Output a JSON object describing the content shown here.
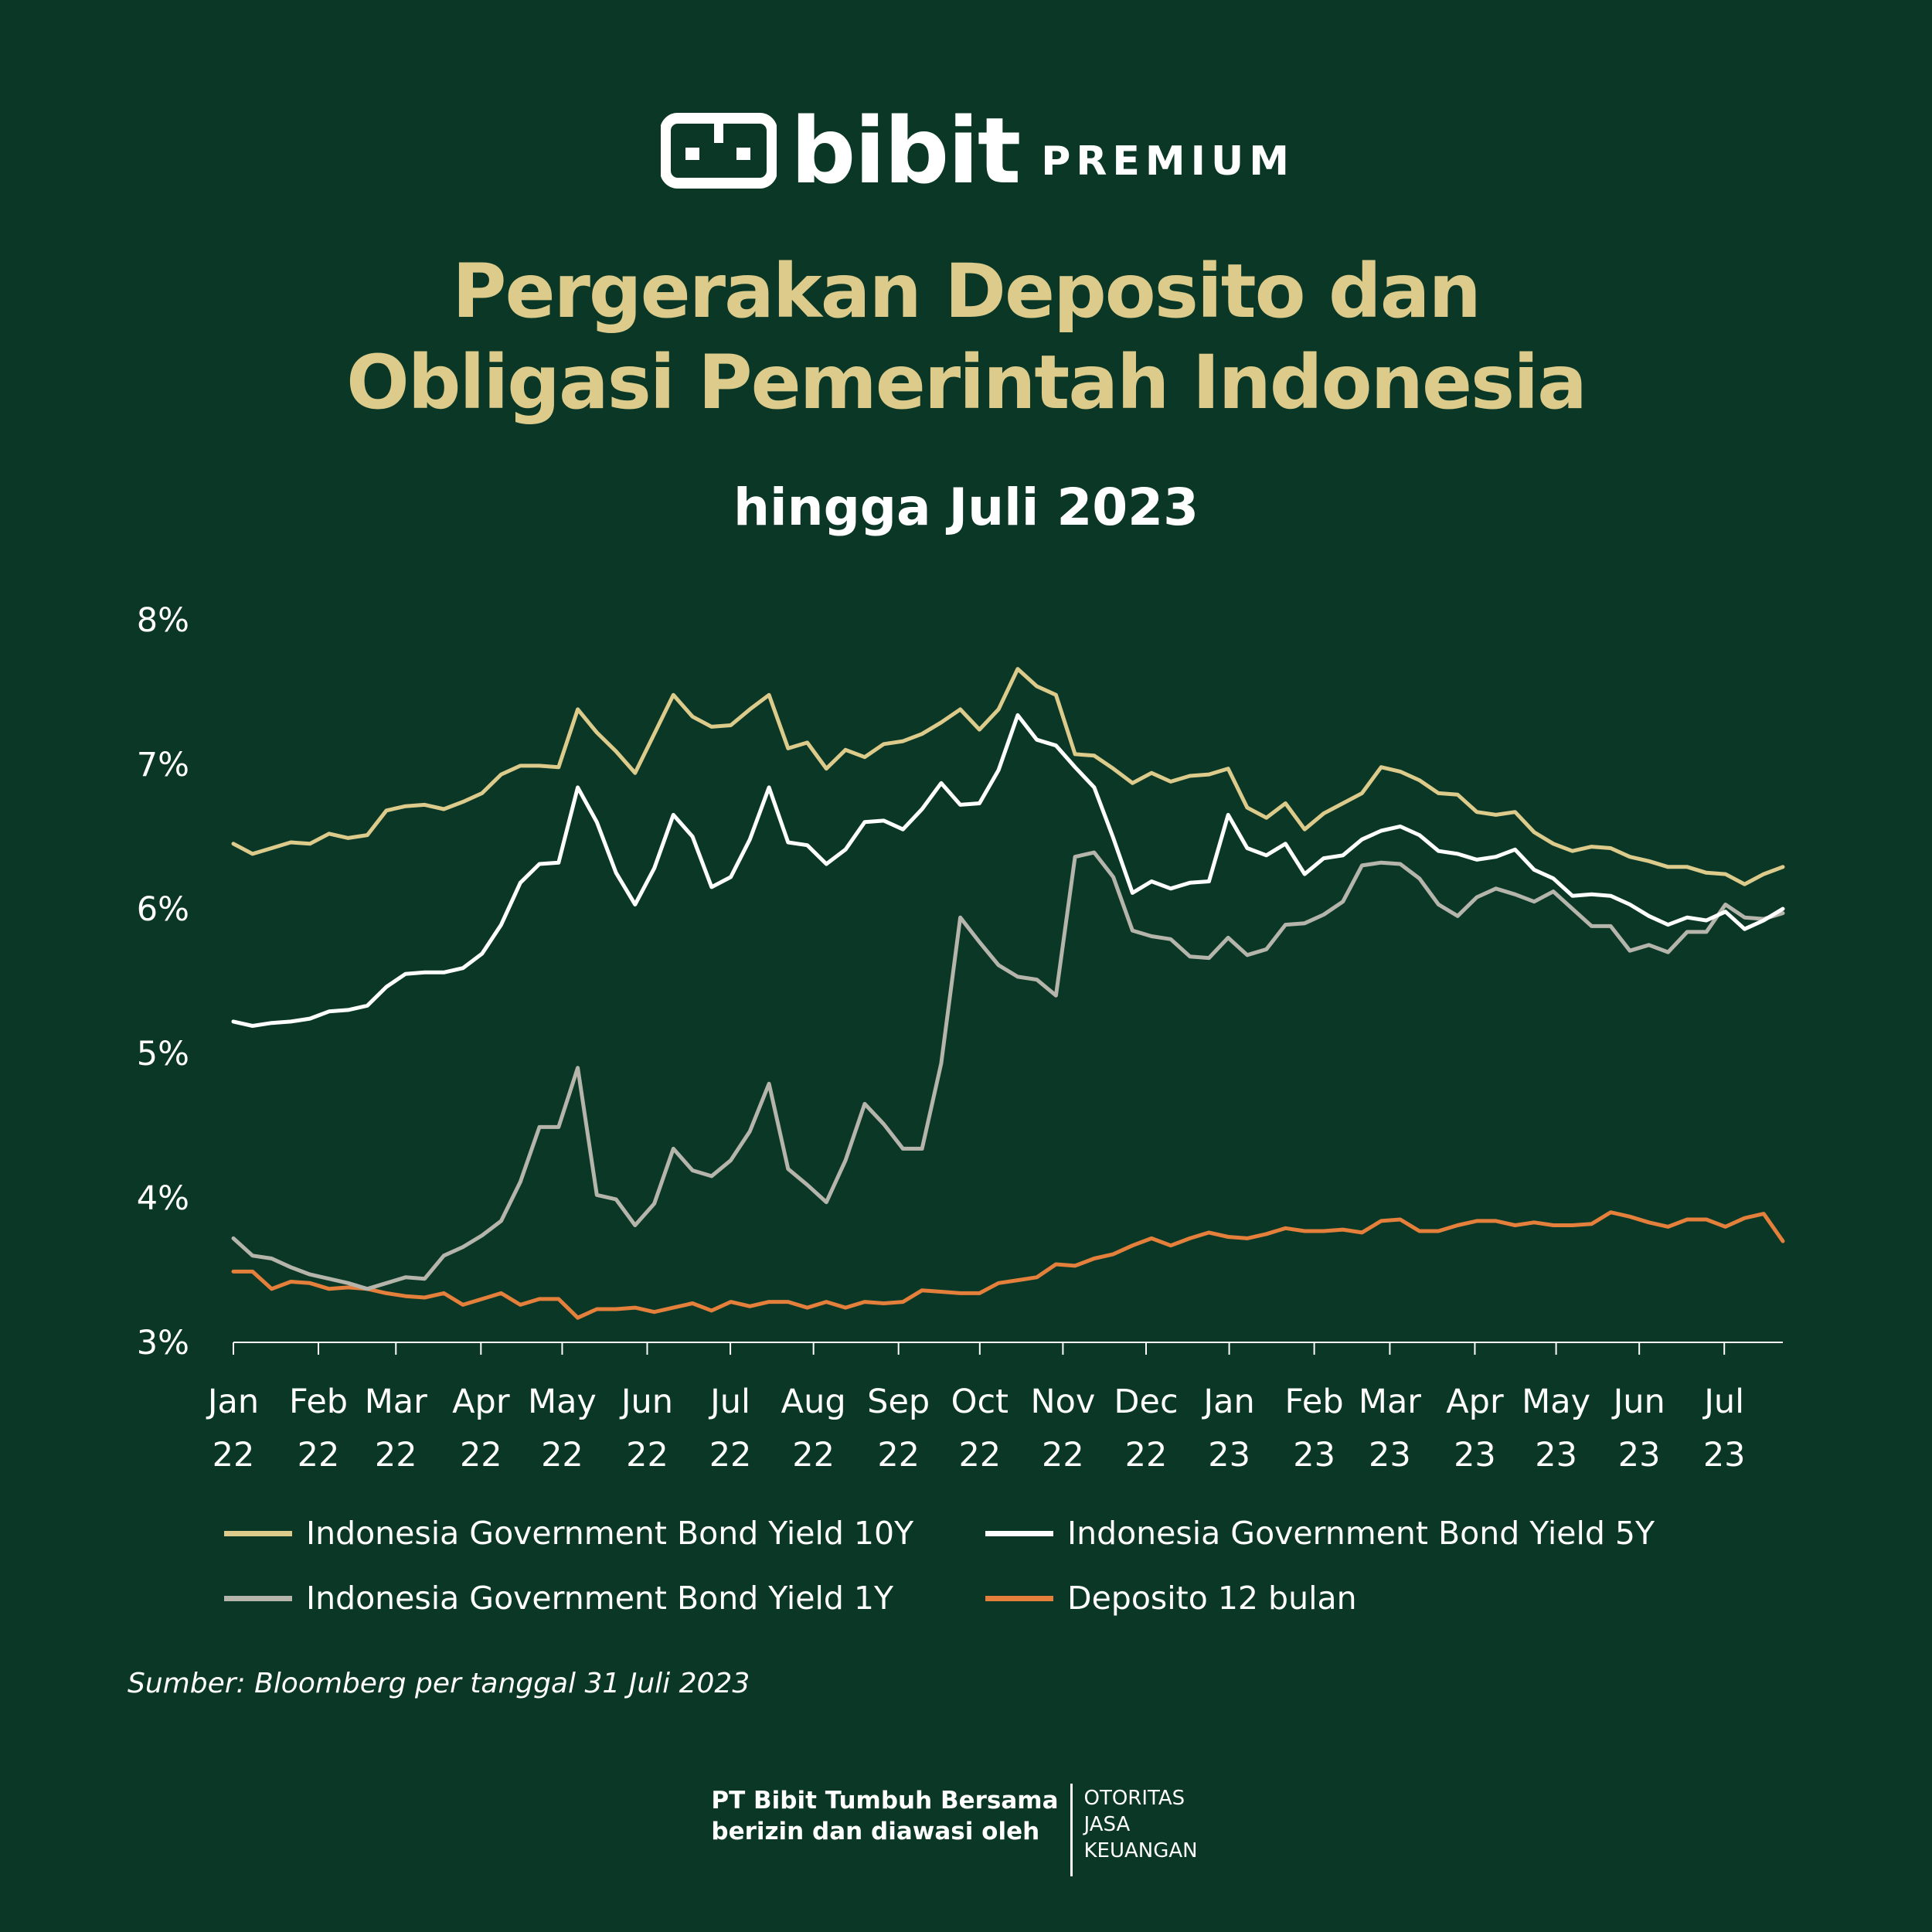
{
  "brand": {
    "logo": "bibit-logo-icon",
    "name": "bibit",
    "tier": "PREMIUM"
  },
  "header": {
    "title_line1": "Pergerakan Deposito dan",
    "title_line2": "Obligasi Pemerintah Indonesia",
    "subtitle": "hingga Juli 2023"
  },
  "chart_data": {
    "type": "line",
    "title": "Pergerakan Deposito dan Obligasi Pemerintah Indonesia",
    "subtitle": "hingga Juli 2023",
    "xlabel": "",
    "ylabel": "",
    "ylim": [
      3,
      8
    ],
    "y_ticks": [
      "3%",
      "4%",
      "5%",
      "6%",
      "7%",
      "8%"
    ],
    "y_tick_values": [
      3,
      4,
      5,
      6,
      7,
      8
    ],
    "x_range": [
      0,
      82
    ],
    "x_ticks": [
      {
        "label1": "Jan",
        "label2": "22",
        "x": 0
      },
      {
        "label1": "Feb",
        "label2": "22",
        "x": 4.5
      },
      {
        "label1": "Mar",
        "label2": "22",
        "x": 8.6
      },
      {
        "label1": "Apr",
        "label2": "22",
        "x": 13.1
      },
      {
        "label1": "May",
        "label2": "22",
        "x": 17.4
      },
      {
        "label1": "Jun",
        "label2": "22",
        "x": 21.9
      },
      {
        "label1": "Jul",
        "label2": "22",
        "x": 26.3
      },
      {
        "label1": "Aug",
        "label2": "22",
        "x": 30.7
      },
      {
        "label1": "Sep",
        "label2": "22",
        "x": 35.2
      },
      {
        "label1": "Oct",
        "label2": "22",
        "x": 39.5
      },
      {
        "label1": "Nov",
        "label2": "22",
        "x": 43.9
      },
      {
        "label1": "Dec",
        "label2": "22",
        "x": 48.3
      },
      {
        "label1": "Jan",
        "label2": "23",
        "x": 52.7
      },
      {
        "label1": "Feb",
        "label2": "23",
        "x": 57.2
      },
      {
        "label1": "Mar",
        "label2": "23",
        "x": 61.2
      },
      {
        "label1": "Apr",
        "label2": "23",
        "x": 65.7
      },
      {
        "label1": "May",
        "label2": "23",
        "x": 70.0
      },
      {
        "label1": "Jun",
        "label2": "23",
        "x": 74.4
      },
      {
        "label1": "Jul",
        "label2": "23",
        "x": 78.9
      }
    ],
    "legend_position": "bottom",
    "grid": false,
    "series": [
      {
        "name": "Indonesia Government Bond Yield 10Y",
        "color": "#dccb8b",
        "values": [
          6.45,
          6.38,
          6.42,
          6.46,
          6.45,
          6.52,
          6.49,
          6.51,
          6.68,
          6.71,
          6.72,
          6.69,
          6.74,
          6.8,
          6.93,
          6.99,
          6.99,
          6.98,
          7.38,
          7.22,
          7.09,
          6.94,
          7.21,
          7.48,
          7.33,
          7.26,
          7.27,
          7.38,
          7.48,
          7.11,
          7.15,
          6.97,
          7.1,
          7.05,
          7.14,
          7.16,
          7.21,
          7.29,
          7.38,
          7.24,
          7.38,
          7.66,
          7.54,
          7.48,
          7.07,
          7.06,
          6.97,
          6.87,
          6.94,
          6.88,
          6.92,
          6.93,
          6.97,
          6.7,
          6.63,
          6.73,
          6.55,
          6.66,
          6.73,
          6.8,
          6.98,
          6.95,
          6.89,
          6.8,
          6.79,
          6.67,
          6.65,
          6.67,
          6.53,
          6.45,
          6.4,
          6.43,
          6.42,
          6.36,
          6.33,
          6.29,
          6.29,
          6.25,
          6.24,
          6.17,
          6.24,
          6.29
        ]
      },
      {
        "name": "Indonesia Government Bond Yield 5Y",
        "color": "#ffffff",
        "values": [
          5.22,
          5.19,
          5.21,
          5.22,
          5.24,
          5.29,
          5.3,
          5.33,
          5.46,
          5.55,
          5.56,
          5.56,
          5.59,
          5.69,
          5.89,
          6.18,
          6.31,
          6.32,
          6.84,
          6.6,
          6.25,
          6.03,
          6.28,
          6.65,
          6.5,
          6.15,
          6.22,
          6.48,
          6.84,
          6.46,
          6.44,
          6.31,
          6.41,
          6.6,
          6.61,
          6.55,
          6.69,
          6.87,
          6.72,
          6.73,
          6.96,
          7.34,
          7.17,
          7.13,
          6.98,
          6.84,
          6.49,
          6.11,
          6.19,
          6.14,
          6.18,
          6.19,
          6.65,
          6.42,
          6.37,
          6.45,
          6.24,
          6.35,
          6.37,
          6.48,
          6.54,
          6.57,
          6.51,
          6.4,
          6.38,
          6.34,
          6.36,
          6.41,
          6.27,
          6.21,
          6.09,
          6.1,
          6.09,
          6.03,
          5.95,
          5.89,
          5.94,
          5.92,
          5.98,
          5.86,
          5.92,
          6.0
        ]
      },
      {
        "name": "Indonesia Government Bond Yield 1Y",
        "color": "#b5b5ac",
        "values": [
          3.72,
          3.6,
          3.58,
          3.52,
          3.47,
          3.44,
          3.41,
          3.37,
          3.41,
          3.45,
          3.44,
          3.6,
          3.66,
          3.74,
          3.84,
          4.11,
          4.49,
          4.49,
          4.9,
          4.02,
          3.99,
          3.81,
          3.96,
          4.34,
          4.19,
          4.15,
          4.26,
          4.46,
          4.79,
          4.2,
          4.09,
          3.97,
          4.26,
          4.65,
          4.51,
          4.34,
          4.34,
          4.93,
          5.94,
          5.77,
          5.61,
          5.53,
          5.51,
          5.4,
          6.36,
          6.39,
          6.22,
          5.85,
          5.81,
          5.79,
          5.67,
          5.66,
          5.8,
          5.68,
          5.72,
          5.89,
          5.9,
          5.96,
          6.05,
          6.3,
          6.32,
          6.31,
          6.21,
          6.03,
          5.95,
          6.08,
          6.14,
          6.1,
          6.05,
          6.12,
          6.0,
          5.88,
          5.88,
          5.71,
          5.75,
          5.7,
          5.84,
          5.84,
          6.03,
          5.94,
          5.93,
          5.97
        ]
      },
      {
        "name": "Deposito 12 bulan",
        "color": "#e4803b",
        "values": [
          3.49,
          3.49,
          3.37,
          3.42,
          3.41,
          3.37,
          3.38,
          3.37,
          3.34,
          3.32,
          3.31,
          3.34,
          3.26,
          3.3,
          3.34,
          3.26,
          3.3,
          3.3,
          3.17,
          3.23,
          3.23,
          3.24,
          3.21,
          3.24,
          3.27,
          3.22,
          3.28,
          3.25,
          3.28,
          3.28,
          3.24,
          3.28,
          3.24,
          3.28,
          3.27,
          3.28,
          3.36,
          3.35,
          3.34,
          3.34,
          3.41,
          3.43,
          3.45,
          3.54,
          3.53,
          3.58,
          3.61,
          3.67,
          3.72,
          3.67,
          3.72,
          3.76,
          3.73,
          3.72,
          3.75,
          3.79,
          3.77,
          3.77,
          3.78,
          3.76,
          3.84,
          3.85,
          3.77,
          3.77,
          3.81,
          3.84,
          3.84,
          3.81,
          3.83,
          3.81,
          3.81,
          3.82,
          3.9,
          3.87,
          3.83,
          3.8,
          3.85,
          3.85,
          3.8,
          3.86,
          3.89,
          3.7
        ]
      }
    ]
  },
  "source": "Sumber: Bloomberg per tanggal 31 Juli 2023",
  "footer": {
    "company_line1": "PT Bibit Tumbuh Bersama",
    "company_line2": "berizin dan diawasi oleh",
    "ojk_line1": "OTORITAS",
    "ojk_line2": "JASA",
    "ojk_line3": "KEUANGAN"
  }
}
